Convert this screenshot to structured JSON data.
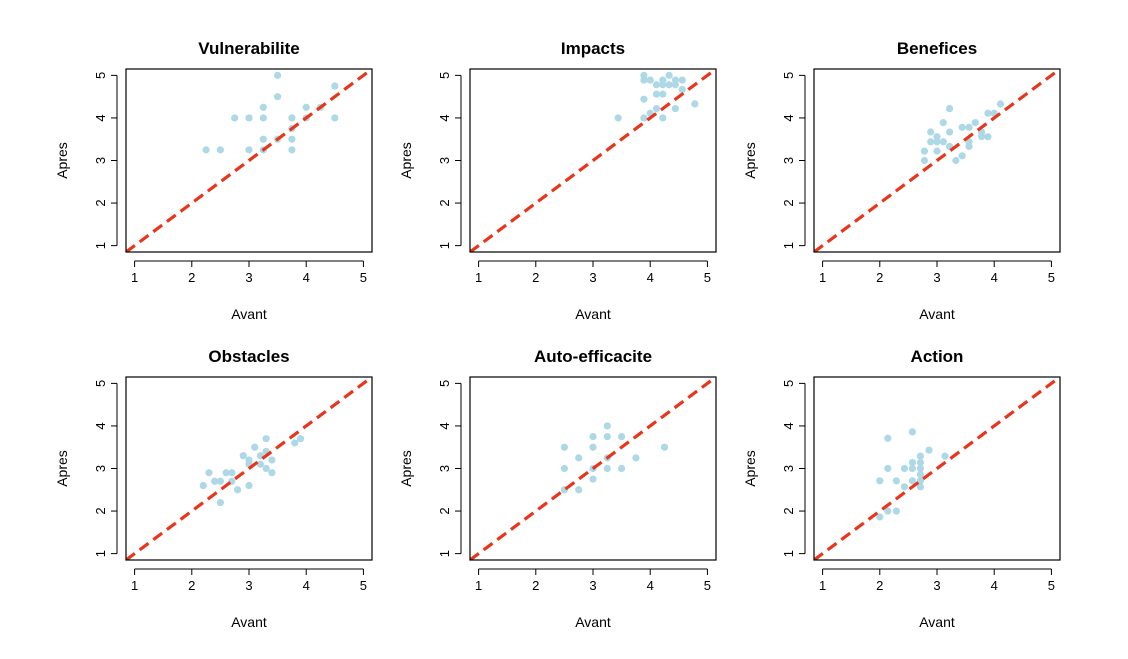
{
  "colors": {
    "point": "#add8e6",
    "reference_line": "#e8351b",
    "frame": "#000000",
    "background": "#ffffff"
  },
  "chart_data": [
    {
      "type": "scatter",
      "title": "Vulnerabilite",
      "xlabel": "Avant",
      "ylabel": "Apres",
      "xlim": [
        0.85,
        5.15
      ],
      "ylim": [
        0.85,
        5.15
      ],
      "xticks": [
        "1",
        "2",
        "3",
        "4",
        "5"
      ],
      "yticks": [
        "1",
        "2",
        "3",
        "4",
        "5"
      ],
      "reference_line": {
        "slope": 1,
        "intercept": 0,
        "style": "dashed"
      },
      "x": [
        2.25,
        2.5,
        2.75,
        3.0,
        3.0,
        3.25,
        3.25,
        3.25,
        3.25,
        3.5,
        3.5,
        3.5,
        3.75,
        3.75,
        3.75,
        3.75,
        4.0,
        4.0,
        4.25,
        4.5,
        4.5
      ],
      "y": [
        3.25,
        3.25,
        4.0,
        4.0,
        3.25,
        4.25,
        4.0,
        3.5,
        3.25,
        5.0,
        4.5,
        3.5,
        4.0,
        3.75,
        3.5,
        3.25,
        4.25,
        4.0,
        4.25,
        4.75,
        4.0
      ]
    },
    {
      "type": "scatter",
      "title": "Impacts",
      "xlabel": "Avant",
      "ylabel": "Apres",
      "xlim": [
        0.85,
        5.15
      ],
      "ylim": [
        0.85,
        5.15
      ],
      "xticks": [
        "1",
        "2",
        "3",
        "4",
        "5"
      ],
      "yticks": [
        "1",
        "2",
        "3",
        "4",
        "5"
      ],
      "reference_line": {
        "slope": 1,
        "intercept": 0,
        "style": "dashed"
      },
      "x": [
        3.44,
        3.89,
        3.89,
        3.89,
        3.89,
        4.0,
        4.0,
        4.11,
        4.11,
        4.11,
        4.22,
        4.22,
        4.22,
        4.22,
        4.33,
        4.33,
        4.44,
        4.44,
        4.44,
        4.56,
        4.56,
        4.78
      ],
      "y": [
        4.0,
        5.0,
        4.89,
        4.44,
        4.0,
        4.89,
        4.11,
        4.78,
        4.56,
        4.22,
        4.89,
        4.78,
        4.56,
        4.0,
        5.0,
        4.78,
        4.89,
        4.78,
        4.22,
        4.89,
        4.67,
        4.33
      ]
    },
    {
      "type": "scatter",
      "title": "Benefices",
      "xlabel": "Avant",
      "ylabel": "Apres",
      "xlim": [
        0.85,
        5.15
      ],
      "ylim": [
        0.85,
        5.15
      ],
      "xticks": [
        "1",
        "2",
        "3",
        "4",
        "5"
      ],
      "yticks": [
        "1",
        "2",
        "3",
        "4",
        "5"
      ],
      "reference_line": {
        "slope": 1,
        "intercept": 0,
        "style": "dashed"
      },
      "x": [
        2.78,
        2.78,
        2.89,
        2.89,
        3.0,
        3.0,
        3.0,
        3.11,
        3.11,
        3.22,
        3.22,
        3.22,
        3.33,
        3.44,
        3.44,
        3.56,
        3.56,
        3.56,
        3.67,
        3.78,
        3.78,
        3.89,
        3.89,
        4.0,
        4.11
      ],
      "y": [
        3.22,
        3.0,
        3.67,
        3.44,
        3.56,
        3.44,
        3.22,
        3.89,
        3.44,
        4.22,
        3.67,
        3.33,
        3.0,
        3.78,
        3.11,
        3.78,
        3.44,
        3.33,
        3.89,
        3.67,
        3.56,
        4.11,
        3.56,
        4.11,
        4.33
      ]
    },
    {
      "type": "scatter",
      "title": "Obstacles",
      "xlabel": "Avant",
      "ylabel": "Apres",
      "xlim": [
        0.85,
        5.15
      ],
      "ylim": [
        0.85,
        5.15
      ],
      "xticks": [
        "1",
        "2",
        "3",
        "4",
        "5"
      ],
      "yticks": [
        "1",
        "2",
        "3",
        "4",
        "5"
      ],
      "reference_line": {
        "slope": 1,
        "intercept": 0,
        "style": "dashed"
      },
      "x": [
        2.2,
        2.3,
        2.4,
        2.5,
        2.5,
        2.6,
        2.7,
        2.7,
        2.8,
        2.9,
        3.0,
        3.0,
        3.0,
        3.1,
        3.2,
        3.2,
        3.3,
        3.3,
        3.3,
        3.4,
        3.4,
        3.8,
        3.9
      ],
      "y": [
        2.6,
        2.9,
        2.7,
        2.7,
        2.2,
        2.9,
        2.9,
        2.7,
        2.5,
        3.3,
        3.2,
        3.1,
        2.6,
        3.5,
        3.3,
        3.1,
        3.7,
        3.4,
        3.0,
        3.2,
        2.9,
        3.6,
        3.7
      ]
    },
    {
      "type": "scatter",
      "title": "Auto-efficacite",
      "xlabel": "Avant",
      "ylabel": "Apres",
      "xlim": [
        0.85,
        5.15
      ],
      "ylim": [
        0.85,
        5.15
      ],
      "xticks": [
        "1",
        "2",
        "3",
        "4",
        "5"
      ],
      "yticks": [
        "1",
        "2",
        "3",
        "4",
        "5"
      ],
      "reference_line": {
        "slope": 1,
        "intercept": 0,
        "style": "dashed"
      },
      "x": [
        2.5,
        2.5,
        2.5,
        2.75,
        2.75,
        3.0,
        3.0,
        3.0,
        3.0,
        3.25,
        3.25,
        3.25,
        3.25,
        3.5,
        3.5,
        3.75,
        4.25
      ],
      "y": [
        3.5,
        3.0,
        2.5,
        3.25,
        2.5,
        3.75,
        3.5,
        3.0,
        2.75,
        4.0,
        3.75,
        3.25,
        3.0,
        3.75,
        3.0,
        3.25,
        3.5
      ]
    },
    {
      "type": "scatter",
      "title": "Action",
      "xlabel": "Avant",
      "ylabel": "Apres",
      "xlim": [
        0.85,
        5.15
      ],
      "ylim": [
        0.85,
        5.15
      ],
      "xticks": [
        "1",
        "2",
        "3",
        "4",
        "5"
      ],
      "yticks": [
        "1",
        "2",
        "3",
        "4",
        "5"
      ],
      "reference_line": {
        "slope": 1,
        "intercept": 0,
        "style": "dashed"
      },
      "x": [
        2.0,
        2.0,
        2.14,
        2.14,
        2.14,
        2.29,
        2.29,
        2.43,
        2.43,
        2.57,
        2.57,
        2.57,
        2.57,
        2.71,
        2.71,
        2.71,
        2.71,
        2.71,
        2.71,
        2.86,
        3.14
      ],
      "y": [
        2.71,
        1.86,
        3.71,
        3.0,
        2.0,
        2.71,
        2.0,
        3.0,
        2.57,
        3.86,
        3.14,
        3.0,
        2.71,
        3.29,
        3.14,
        3.0,
        2.86,
        2.71,
        2.57,
        3.43,
        3.29
      ]
    }
  ]
}
